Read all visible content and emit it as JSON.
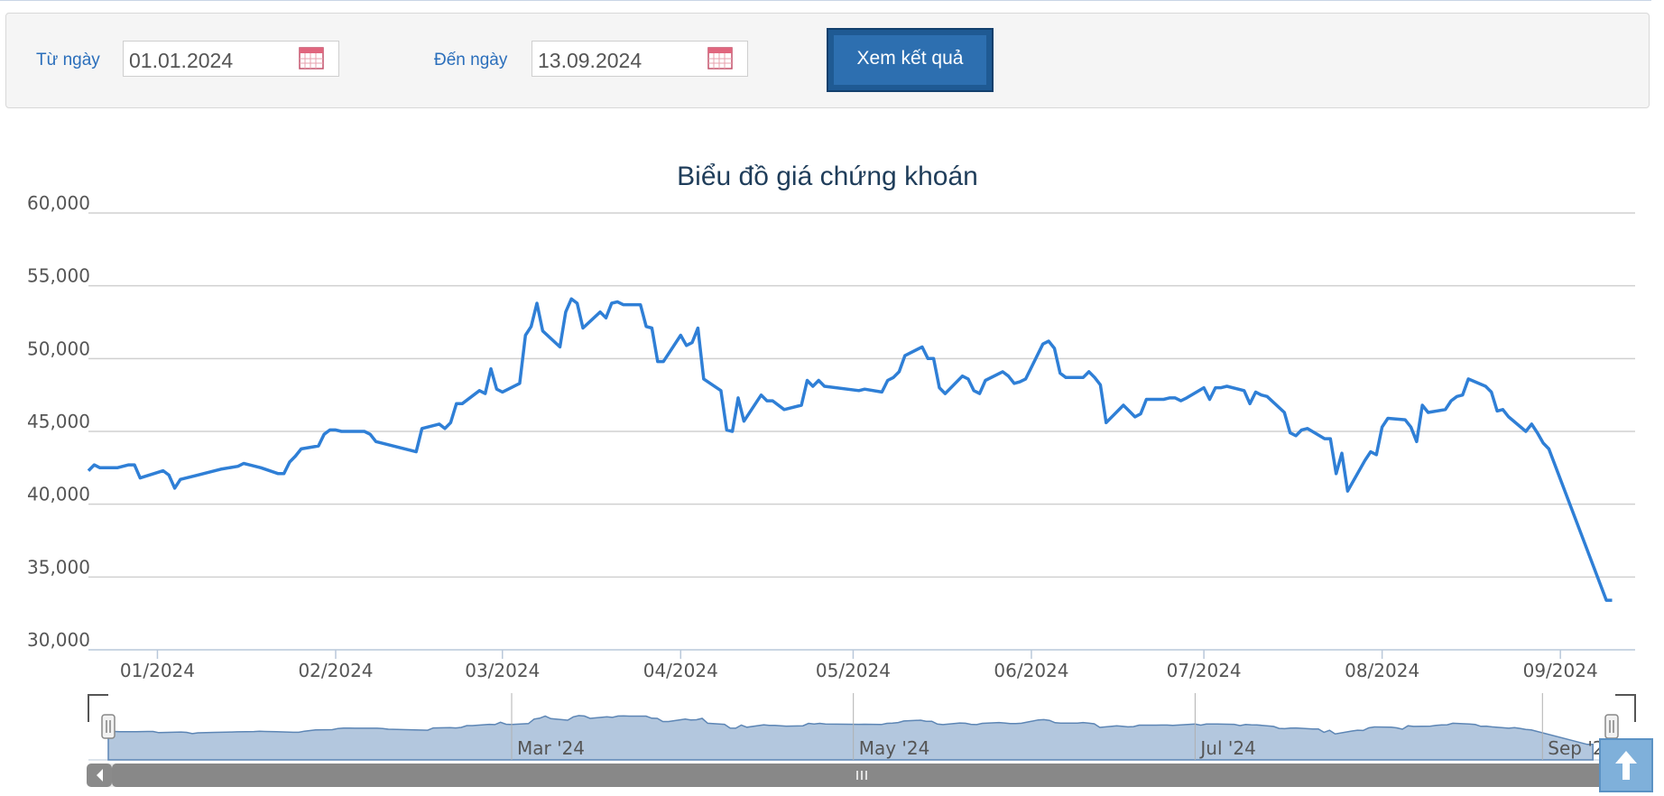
{
  "filter": {
    "from_label": "Từ ngày",
    "from_value": "01.01.2024",
    "to_label": "Đến ngày",
    "to_value": "13.09.2024",
    "submit_label": "Xem kết quả"
  },
  "colors": {
    "line": "#2f7fd6",
    "navigator_fill": "#b3c7de",
    "navigator_line": "#5d86b5",
    "accent_button": "#1f5a93"
  },
  "chart_data": {
    "type": "line",
    "title": "Biểu đồ giá chứng khoán",
    "ylim": [
      30000,
      60000
    ],
    "yticks": [
      "30,000",
      "35,000",
      "40,000",
      "45,000",
      "50,000",
      "55,000",
      "60,000"
    ],
    "ytick_values": [
      30000,
      35000,
      40000,
      45000,
      50000,
      55000,
      60000
    ],
    "xticks": [
      "01/2024",
      "02/2024",
      "03/2024",
      "04/2024",
      "05/2024",
      "06/2024",
      "07/2024",
      "08/2024",
      "09/2024"
    ],
    "xtick_dates": [
      "2024-01-01",
      "2024-02-01",
      "2024-03-01",
      "2024-04-01",
      "2024-05-01",
      "2024-06-01",
      "2024-07-01",
      "2024-08-01",
      "2024-09-01"
    ],
    "navigator_ticks": [
      "Mar '24",
      "May '24",
      "Jul '24",
      "Sep '24"
    ],
    "navigator_tick_dates": [
      "2024-03-01",
      "2024-05-01",
      "2024-07-01",
      "2024-09-01"
    ],
    "grid": true,
    "legend": "none",
    "x_range": [
      "2023-12-20",
      "2024-09-14"
    ],
    "series": [
      {
        "points": [
          [
            "2023-12-20",
            42300
          ],
          [
            "2023-12-21",
            42700
          ],
          [
            "2023-12-22",
            42500
          ],
          [
            "2023-12-25",
            42500
          ],
          [
            "2023-12-26",
            42600
          ],
          [
            "2023-12-27",
            42700
          ],
          [
            "2023-12-28",
            42700
          ],
          [
            "2023-12-29",
            41800
          ],
          [
            "2024-01-02",
            42300
          ],
          [
            "2024-01-03",
            42000
          ],
          [
            "2024-01-04",
            41100
          ],
          [
            "2024-01-05",
            41700
          ],
          [
            "2024-01-08",
            42000
          ],
          [
            "2024-01-09",
            42100
          ],
          [
            "2024-01-10",
            42200
          ],
          [
            "2024-01-11",
            42300
          ],
          [
            "2024-01-12",
            42400
          ],
          [
            "2024-01-15",
            42600
          ],
          [
            "2024-01-16",
            42800
          ],
          [
            "2024-01-17",
            42700
          ],
          [
            "2024-01-18",
            42600
          ],
          [
            "2024-01-19",
            42500
          ],
          [
            "2024-01-22",
            42100
          ],
          [
            "2024-01-23",
            42100
          ],
          [
            "2024-01-24",
            42900
          ],
          [
            "2024-01-25",
            43300
          ],
          [
            "2024-01-26",
            43800
          ],
          [
            "2024-01-29",
            44000
          ],
          [
            "2024-01-30",
            44800
          ],
          [
            "2024-01-31",
            45100
          ],
          [
            "2024-02-01",
            45100
          ],
          [
            "2024-02-02",
            45000
          ],
          [
            "2024-02-05",
            45000
          ],
          [
            "2024-02-06",
            45000
          ],
          [
            "2024-02-07",
            44800
          ],
          [
            "2024-02-08",
            44300
          ],
          [
            "2024-02-15",
            43600
          ],
          [
            "2024-02-16",
            45200
          ],
          [
            "2024-02-19",
            45500
          ],
          [
            "2024-02-20",
            45200
          ],
          [
            "2024-02-21",
            45600
          ],
          [
            "2024-02-22",
            46900
          ],
          [
            "2024-02-23",
            46900
          ],
          [
            "2024-02-26",
            47800
          ],
          [
            "2024-02-27",
            47600
          ],
          [
            "2024-02-28",
            49300
          ],
          [
            "2024-02-29",
            47900
          ],
          [
            "2024-03-01",
            47700
          ],
          [
            "2024-03-04",
            48300
          ],
          [
            "2024-03-05",
            51600
          ],
          [
            "2024-03-06",
            52200
          ],
          [
            "2024-03-07",
            53800
          ],
          [
            "2024-03-08",
            51900
          ],
          [
            "2024-03-11",
            50800
          ],
          [
            "2024-03-12",
            53200
          ],
          [
            "2024-03-13",
            54100
          ],
          [
            "2024-03-14",
            53800
          ],
          [
            "2024-03-15",
            52100
          ],
          [
            "2024-03-18",
            53200
          ],
          [
            "2024-03-19",
            52800
          ],
          [
            "2024-03-20",
            53800
          ],
          [
            "2024-03-21",
            53900
          ],
          [
            "2024-03-22",
            53700
          ],
          [
            "2024-03-25",
            53700
          ],
          [
            "2024-03-26",
            52200
          ],
          [
            "2024-03-27",
            52100
          ],
          [
            "2024-03-28",
            49800
          ],
          [
            "2024-03-29",
            49800
          ],
          [
            "2024-04-01",
            51600
          ],
          [
            "2024-04-02",
            50900
          ],
          [
            "2024-04-03",
            51100
          ],
          [
            "2024-04-04",
            52100
          ],
          [
            "2024-04-05",
            48600
          ],
          [
            "2024-04-08",
            47800
          ],
          [
            "2024-04-09",
            45100
          ],
          [
            "2024-04-10",
            45000
          ],
          [
            "2024-04-11",
            47300
          ],
          [
            "2024-04-12",
            45700
          ],
          [
            "2024-04-15",
            47500
          ],
          [
            "2024-04-16",
            47100
          ],
          [
            "2024-04-17",
            47100
          ],
          [
            "2024-04-19",
            46500
          ],
          [
            "2024-04-22",
            46800
          ],
          [
            "2024-04-23",
            48500
          ],
          [
            "2024-04-24",
            48100
          ],
          [
            "2024-04-25",
            48500
          ],
          [
            "2024-04-26",
            48100
          ],
          [
            "2024-05-02",
            47800
          ],
          [
            "2024-05-03",
            47900
          ],
          [
            "2024-05-06",
            47700
          ],
          [
            "2024-05-07",
            48500
          ],
          [
            "2024-05-08",
            48700
          ],
          [
            "2024-05-09",
            49100
          ],
          [
            "2024-05-10",
            50200
          ],
          [
            "2024-05-13",
            50800
          ],
          [
            "2024-05-14",
            50000
          ],
          [
            "2024-05-15",
            50000
          ],
          [
            "2024-05-16",
            48000
          ],
          [
            "2024-05-17",
            47600
          ],
          [
            "2024-05-20",
            48800
          ],
          [
            "2024-05-21",
            48600
          ],
          [
            "2024-05-22",
            47800
          ],
          [
            "2024-05-23",
            47600
          ],
          [
            "2024-05-24",
            48500
          ],
          [
            "2024-05-27",
            49100
          ],
          [
            "2024-05-28",
            48800
          ],
          [
            "2024-05-29",
            48300
          ],
          [
            "2024-05-30",
            48400
          ],
          [
            "2024-05-31",
            48600
          ],
          [
            "2024-06-03",
            51000
          ],
          [
            "2024-06-04",
            51200
          ],
          [
            "2024-06-05",
            50700
          ],
          [
            "2024-06-06",
            49000
          ],
          [
            "2024-06-07",
            48700
          ],
          [
            "2024-06-10",
            48700
          ],
          [
            "2024-06-11",
            49100
          ],
          [
            "2024-06-12",
            48700
          ],
          [
            "2024-06-13",
            48200
          ],
          [
            "2024-06-14",
            45600
          ],
          [
            "2024-06-17",
            46800
          ],
          [
            "2024-06-18",
            46400
          ],
          [
            "2024-06-19",
            46000
          ],
          [
            "2024-06-20",
            46200
          ],
          [
            "2024-06-21",
            47200
          ],
          [
            "2024-06-24",
            47200
          ],
          [
            "2024-06-25",
            47300
          ],
          [
            "2024-06-26",
            47300
          ],
          [
            "2024-06-27",
            47100
          ],
          [
            "2024-06-28",
            47300
          ],
          [
            "2024-07-01",
            48000
          ],
          [
            "2024-07-02",
            47200
          ],
          [
            "2024-07-03",
            48000
          ],
          [
            "2024-07-04",
            48000
          ],
          [
            "2024-07-05",
            48100
          ],
          [
            "2024-07-08",
            47800
          ],
          [
            "2024-07-09",
            46900
          ],
          [
            "2024-07-10",
            47700
          ],
          [
            "2024-07-11",
            47500
          ],
          [
            "2024-07-12",
            47400
          ],
          [
            "2024-07-15",
            46300
          ],
          [
            "2024-07-16",
            44900
          ],
          [
            "2024-07-17",
            44700
          ],
          [
            "2024-07-18",
            45100
          ],
          [
            "2024-07-19",
            45200
          ],
          [
            "2024-07-22",
            44500
          ],
          [
            "2024-07-23",
            44500
          ],
          [
            "2024-07-24",
            42100
          ],
          [
            "2024-07-25",
            43500
          ],
          [
            "2024-07-26",
            40900
          ],
          [
            "2024-07-29",
            43000
          ],
          [
            "2024-07-30",
            43600
          ],
          [
            "2024-07-31",
            43400
          ],
          [
            "2024-08-01",
            45300
          ],
          [
            "2024-08-02",
            45900
          ],
          [
            "2024-08-05",
            45800
          ],
          [
            "2024-08-06",
            45300
          ],
          [
            "2024-08-07",
            44300
          ],
          [
            "2024-08-08",
            46800
          ],
          [
            "2024-08-09",
            46300
          ],
          [
            "2024-08-12",
            46500
          ],
          [
            "2024-08-13",
            47100
          ],
          [
            "2024-08-14",
            47400
          ],
          [
            "2024-08-15",
            47500
          ],
          [
            "2024-08-16",
            48600
          ],
          [
            "2024-08-19",
            48100
          ],
          [
            "2024-08-20",
            47700
          ],
          [
            "2024-08-21",
            46400
          ],
          [
            "2024-08-22",
            46500
          ],
          [
            "2024-08-23",
            46000
          ],
          [
            "2024-08-26",
            45000
          ],
          [
            "2024-08-27",
            45500
          ],
          [
            "2024-08-28",
            44900
          ],
          [
            "2024-08-29",
            44200
          ],
          [
            "2024-08-30",
            43800
          ],
          [
            "2024-09-09",
            33400
          ],
          [
            "2024-09-10",
            33400
          ]
        ]
      }
    ]
  }
}
